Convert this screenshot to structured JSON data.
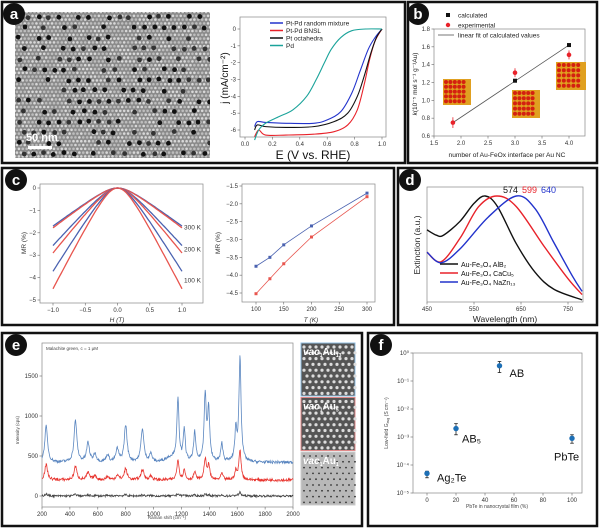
{
  "panels": {
    "a": "a",
    "b": "b",
    "c": "c",
    "d": "d",
    "e": "e",
    "f": "f"
  },
  "colors": {
    "blue": "#2233cc",
    "red": "#e8222a",
    "black": "#111111",
    "teal": "#1aa39a",
    "c_blue": "#4a62b0",
    "c_red": "#e8554e",
    "e_blue": "#5a86c0",
    "e_red": "#e8342e",
    "f_point": "#1d6fb5"
  },
  "panel_a_image": {
    "scale_bar": "50 nm"
  },
  "panel_e_insets": [
    {
      "label_main": "vac",
      "label_sub1": "1",
      "label_rest": "Au",
      "label_sub2": "13",
      "border": "#8fbde0"
    },
    {
      "label_main": "vac",
      "label_sub1": "1",
      "label_rest": "Au",
      "label_sub2": "5",
      "border": "#e08a8a"
    },
    {
      "label_main": "vac",
      "label_sub1": "1",
      "label_rest": "Au",
      "label_sub2": "1",
      "border": "#cccccc"
    }
  ],
  "chart_data": [
    {
      "panel": "a",
      "type": "line",
      "xlabel": "E (V vs. RHE)",
      "ylabel": "j (mA/cm⁻²)",
      "xlim": [
        0.0,
        1.0
      ],
      "ylim": [
        -6.5,
        0.5
      ],
      "xticks": [
        "0.0",
        "0.2",
        "0.4",
        "0.6",
        "0.8",
        "1.0"
      ],
      "yticks": [
        "0",
        "-1",
        "-2",
        "-3",
        "-4",
        "-5",
        "-6"
      ],
      "legend_position": "top-left",
      "series": [
        {
          "name": "Pt-Pd random mixture",
          "color": "#2233cc",
          "points": [
            [
              0.07,
              -5.8
            ],
            [
              0.09,
              -5.5
            ],
            [
              0.15,
              -5.55
            ],
            [
              0.3,
              -5.6
            ],
            [
              0.5,
              -5.6
            ],
            [
              0.6,
              -5.4
            ],
            [
              0.7,
              -4.9
            ],
            [
              0.78,
              -3.8
            ],
            [
              0.84,
              -2.5
            ],
            [
              0.9,
              -1.2
            ],
            [
              0.95,
              -0.5
            ],
            [
              1.0,
              0.0
            ]
          ]
        },
        {
          "name": "Pt-Pd BNSL",
          "color": "#e8222a",
          "points": [
            [
              0.07,
              -6.4
            ],
            [
              0.1,
              -6.0
            ],
            [
              0.15,
              -6.3
            ],
            [
              0.3,
              -6.3
            ],
            [
              0.5,
              -6.25
            ],
            [
              0.65,
              -6.1
            ],
            [
              0.75,
              -5.7
            ],
            [
              0.82,
              -4.8
            ],
            [
              0.87,
              -3.3
            ],
            [
              0.91,
              -1.8
            ],
            [
              0.95,
              -0.7
            ],
            [
              1.0,
              0.0
            ]
          ]
        },
        {
          "name": "Pt octahedra",
          "color": "#111111",
          "points": [
            [
              0.07,
              -6.0
            ],
            [
              0.09,
              -5.7
            ],
            [
              0.15,
              -5.8
            ],
            [
              0.3,
              -5.85
            ],
            [
              0.5,
              -5.8
            ],
            [
              0.65,
              -5.5
            ],
            [
              0.75,
              -5.0
            ],
            [
              0.82,
              -4.0
            ],
            [
              0.87,
              -2.8
            ],
            [
              0.92,
              -1.4
            ],
            [
              0.96,
              -0.5
            ],
            [
              1.0,
              0.0
            ]
          ]
        },
        {
          "name": "Pd",
          "color": "#1aa39a",
          "points": [
            [
              0.07,
              -6.6
            ],
            [
              0.1,
              -6.0
            ],
            [
              0.15,
              -5.6
            ],
            [
              0.25,
              -5.2
            ],
            [
              0.35,
              -4.8
            ],
            [
              0.45,
              -4.0
            ],
            [
              0.52,
              -3.0
            ],
            [
              0.58,
              -2.0
            ],
            [
              0.63,
              -1.2
            ],
            [
              0.7,
              -0.5
            ],
            [
              0.78,
              -0.1
            ],
            [
              0.88,
              0.0
            ],
            [
              1.0,
              0.0
            ]
          ]
        }
      ]
    },
    {
      "panel": "b",
      "type": "scatter",
      "xlabel": "number of Au-FeOx interface per Au NC",
      "ylabel_k": "k",
      "ylabel_rest": "(10⁻⁵ mol s⁻¹ g⁻¹Au)",
      "xlim": [
        1.5,
        4.2
      ],
      "ylim": [
        0.6,
        1.8
      ],
      "xticks": [
        "1.5",
        "2.0",
        "2.5",
        "3.0",
        "3.5",
        "4.0"
      ],
      "yticks": [
        "0.6",
        "0.8",
        "1.0",
        "1.2",
        "1.4",
        "1.6",
        "1.8"
      ],
      "legend_position": "top",
      "series": [
        {
          "name": "calculated",
          "color": "#111111",
          "marker": "square",
          "x": [
            1.85,
            3.0,
            4.0
          ],
          "y": [
            0.75,
            1.22,
            1.62
          ]
        },
        {
          "name": "experimental",
          "color": "#e8222a",
          "marker": "circle",
          "x": [
            1.85,
            3.0,
            4.0
          ],
          "y": [
            0.75,
            1.31,
            1.51
          ],
          "err": [
            0.06,
            0.05,
            0.05
          ]
        },
        {
          "name": "linear fit of calculated values",
          "color": "#555555",
          "marker": "line",
          "x": [
            1.85,
            4.0
          ],
          "y": [
            0.75,
            1.62
          ]
        }
      ]
    },
    {
      "panel": "c-left",
      "type": "line",
      "xlabel": "H (T)",
      "ylabel": "MR (%)",
      "xlim": [
        -1.2,
        1.3
      ],
      "ylim": [
        -5,
        0.2
      ],
      "xticks": [
        "−1.0",
        "−0.5",
        "0.0",
        "0.5",
        "1.0"
      ],
      "yticks": [
        "0",
        "−1",
        "−2",
        "−3",
        "−4",
        "−5"
      ],
      "annotations": [
        "300 K",
        "200 K",
        "100 K"
      ],
      "series": [
        {
          "temperature": "300 K",
          "color": "#4a62b0",
          "mr_at_1T": -1.7
        },
        {
          "temperature": "300 K",
          "color": "#e8554e",
          "mr_at_1T": -1.78
        },
        {
          "temperature": "200 K",
          "color": "#4a62b0",
          "mr_at_1T": -2.57
        },
        {
          "temperature": "200 K",
          "color": "#e8554e",
          "mr_at_1T": -2.9
        },
        {
          "temperature": "100 K",
          "color": "#4a62b0",
          "mr_at_1T": -3.72
        },
        {
          "temperature": "100 K",
          "color": "#e8554e",
          "mr_at_1T": -4.5
        }
      ]
    },
    {
      "panel": "c-right",
      "type": "line",
      "xlabel": "T (K)",
      "ylabel": "MR (%)",
      "xlim": [
        70,
        320
      ],
      "ylim": [
        -4.75,
        -1.5
      ],
      "xticks": [
        "100",
        "150",
        "200",
        "250",
        "300"
      ],
      "yticks": [
        "−1.5",
        "−2.0",
        "−2.5",
        "−3.0",
        "−3.5",
        "−4.0",
        "−4.5"
      ],
      "x": [
        100,
        125,
        150,
        200,
        300
      ],
      "series": [
        {
          "color": "#4a62b0",
          "values": [
            -3.75,
            -3.5,
            -3.15,
            -2.62,
            -1.7
          ]
        },
        {
          "color": "#e8554e",
          "values": [
            -4.52,
            -4.1,
            -3.68,
            -2.93,
            -1.8
          ]
        }
      ]
    },
    {
      "panel": "d",
      "type": "line",
      "xlabel": "Wavelength (nm)",
      "ylabel": "Extinction (a.u.)",
      "xlim": [
        450,
        780
      ],
      "ylim": [
        0,
        1.08
      ],
      "xticks": [
        "450",
        "550",
        "650",
        "750"
      ],
      "peak_labels": [
        {
          "text": "574",
          "color": "#111111"
        },
        {
          "text": "599",
          "color": "#e8222a"
        },
        {
          "text": "640",
          "color": "#2233cc"
        }
      ],
      "legend_position": "bottom-left",
      "series": [
        {
          "name": "Au-Fe₃O₄ AlB₂",
          "color": "#111111",
          "points": [
            [
              450,
              0.68
            ],
            [
              470,
              0.63
            ],
            [
              485,
              0.63
            ],
            [
              520,
              0.76
            ],
            [
              550,
              0.93
            ],
            [
              574,
              1.0
            ],
            [
              600,
              0.9
            ],
            [
              640,
              0.55
            ],
            [
              680,
              0.28
            ],
            [
              720,
              0.12
            ],
            [
              780,
              0.02
            ]
          ]
        },
        {
          "name": "Au-Fe₃O₄ CaCu₅",
          "color": "#e8222a",
          "points": [
            [
              450,
              0.47
            ],
            [
              480,
              0.38
            ],
            [
              520,
              0.6
            ],
            [
              560,
              0.9
            ],
            [
              599,
              1.0
            ],
            [
              640,
              0.9
            ],
            [
              700,
              0.52
            ],
            [
              750,
              0.22
            ],
            [
              780,
              0.07
            ]
          ]
        },
        {
          "name": "Au-Fe₃O₄ NaZn₁₃",
          "color": "#2233cc",
          "points": [
            [
              450,
              0.47
            ],
            [
              480,
              0.37
            ],
            [
              520,
              0.5
            ],
            [
              580,
              0.8
            ],
            [
              640,
              1.0
            ],
            [
              680,
              0.88
            ],
            [
              720,
              0.56
            ],
            [
              760,
              0.24
            ],
            [
              780,
              0.1
            ]
          ]
        }
      ]
    },
    {
      "panel": "e",
      "type": "line",
      "title": "Malachite green, c = 1 μM",
      "xlabel": "Raman shift (cm⁻¹)",
      "ylabel": "Intensity (cps)",
      "xlim": [
        200,
        2000
      ],
      "ylim": [
        -100,
        1850
      ],
      "xticks": [
        "200",
        "400",
        "600",
        "800",
        "1000",
        "1200",
        "1400",
        "1600",
        "1800",
        "2000"
      ],
      "yticks": [
        "0",
        "500",
        "1000",
        "1500"
      ],
      "peaks_cm": [
        230,
        440,
        530,
        580,
        670,
        740,
        800,
        920,
        980,
        1175,
        1220,
        1295,
        1370,
        1395,
        1490,
        1590,
        1620
      ],
      "series": [
        {
          "color": "#5a86c0",
          "baseline": 420,
          "peak_heights": [
            450,
            520,
            240,
            100,
            90,
            160,
            460,
            420,
            100,
            750,
            400,
            370,
            830,
            650,
            230,
            380,
            1310
          ]
        },
        {
          "color": "#e8342e",
          "baseline": 200,
          "peak_heights": [
            190,
            170,
            90,
            50,
            40,
            60,
            140,
            130,
            50,
            260,
            120,
            100,
            260,
            190,
            80,
            110,
            380
          ]
        },
        {
          "color": "#444444",
          "baseline": 0,
          "peak_heights": [
            25,
            20,
            10,
            5,
            5,
            8,
            15,
            12,
            5,
            30,
            12,
            10,
            20,
            15,
            8,
            10,
            45
          ]
        }
      ]
    },
    {
      "panel": "f",
      "type": "scatter",
      "xlabel": "PbTe in nanocrystal film (%)",
      "ylabel": "Low-field G_avg (S cm⁻¹)",
      "ylabel_main": "Low-field G",
      "ylabel_sub": "avg",
      "ylabel_unit": " (S cm⁻¹)",
      "xlim": [
        -5,
        105
      ],
      "ylim": [
        1e-05,
        1
      ],
      "yscale": "log",
      "xticks": [
        "0",
        "20",
        "40",
        "60",
        "80",
        "100"
      ],
      "yticks": [
        "10⁰",
        "10⁻¹",
        "10⁻²",
        "10⁻³",
        "10⁻⁴",
        "10⁻⁵"
      ],
      "points": [
        {
          "label": "Ag₂Te",
          "x": 0,
          "y": 5e-05,
          "err_low": 3.5e-05,
          "err_high": 6e-05
        },
        {
          "label": "AB₅",
          "x": 20,
          "y": 0.002,
          "err_low": 0.0012,
          "err_high": 0.003
        },
        {
          "label": "AB",
          "x": 50,
          "y": 0.35,
          "err_low": 0.2,
          "err_high": 0.5
        },
        {
          "label": "PbTe",
          "x": 100,
          "y": 0.0009,
          "err_low": 0.0006,
          "err_high": 0.0012
        }
      ]
    }
  ]
}
